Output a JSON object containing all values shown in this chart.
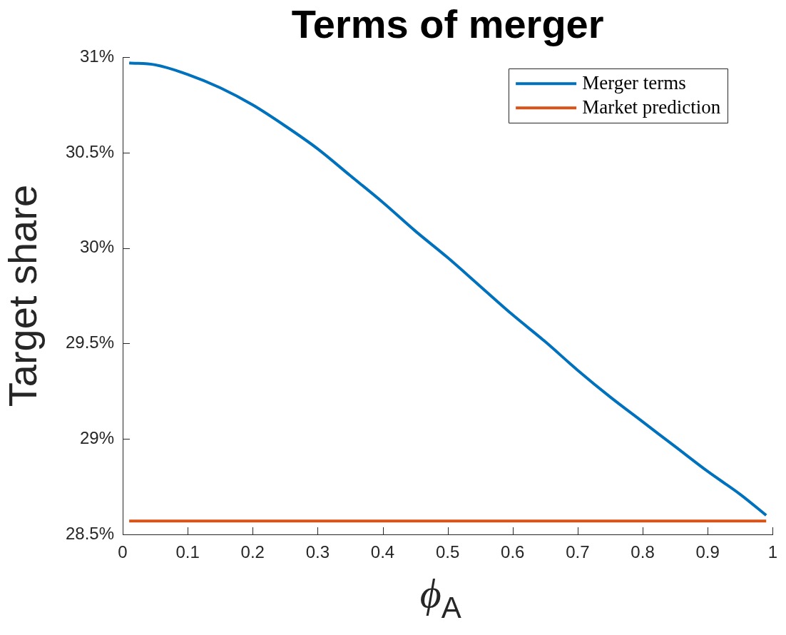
{
  "chart_data": {
    "type": "line",
    "title": "Terms of merger",
    "xlabel": "ϕ$_{A}$",
    "ylabel": "Target share",
    "series": [
      {
        "name": "Merger terms",
        "color": "#0072bd",
        "x": [
          0.01,
          0.05,
          0.1,
          0.15,
          0.2,
          0.25,
          0.3,
          0.35,
          0.4,
          0.45,
          0.5,
          0.55,
          0.6,
          0.65,
          0.7,
          0.75,
          0.8,
          0.85,
          0.9,
          0.95,
          0.99
        ],
        "values": [
          30.97,
          30.96,
          30.91,
          30.84,
          30.75,
          30.64,
          30.52,
          30.38,
          30.24,
          30.09,
          29.95,
          29.8,
          29.65,
          29.51,
          29.36,
          29.22,
          29.09,
          28.96,
          28.83,
          28.71,
          28.6
        ]
      },
      {
        "name": "Market prediction",
        "color": "#d95319",
        "x": [
          0.01,
          0.99
        ],
        "values": [
          28.57,
          28.57
        ]
      }
    ],
    "xlim": [
      0,
      1
    ],
    "xticks": [
      0,
      0.1,
      0.2,
      0.3,
      0.4,
      0.5,
      0.6,
      0.7,
      0.8,
      0.9,
      1
    ],
    "ylim": [
      28.5,
      31
    ],
    "yticks": [
      {
        "value": 28.5,
        "label": "28.5%"
      },
      {
        "value": 29,
        "label": "29%"
      },
      {
        "value": 29.5,
        "label": "29.5%"
      },
      {
        "value": 30,
        "label": "30%"
      },
      {
        "value": 30.5,
        "label": "30.5%"
      },
      {
        "value": 31,
        "label": "31%"
      }
    ],
    "legend": "top right",
    "marker": "none",
    "line_style": "solid"
  }
}
